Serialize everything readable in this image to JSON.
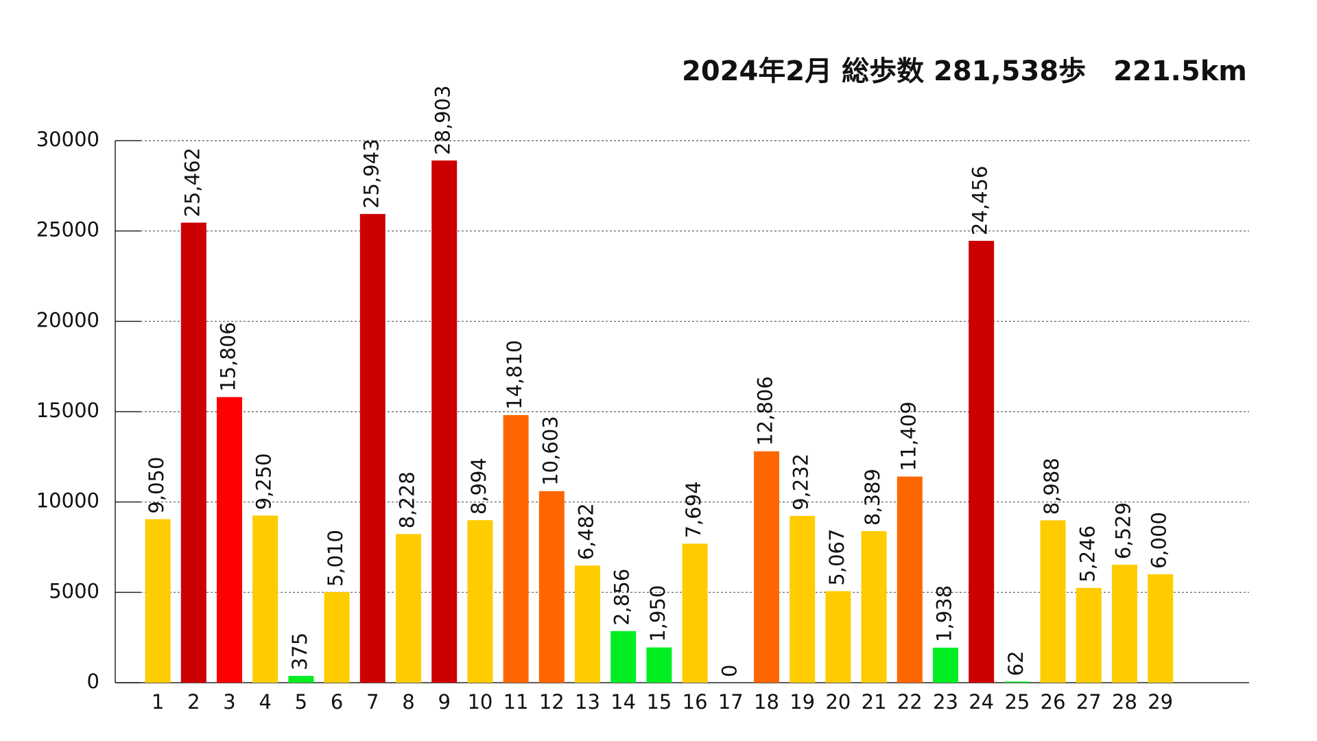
{
  "chart_data": {
    "type": "bar",
    "title": "2024年2月 総歩数 281,538歩　221.5km",
    "categories": [
      "1",
      "2",
      "3",
      "4",
      "5",
      "6",
      "7",
      "8",
      "9",
      "10",
      "11",
      "12",
      "13",
      "14",
      "15",
      "16",
      "17",
      "18",
      "19",
      "20",
      "21",
      "22",
      "23",
      "24",
      "25",
      "26",
      "27",
      "28",
      "29"
    ],
    "values": [
      9050,
      25462,
      15806,
      9250,
      375,
      5010,
      25943,
      8228,
      28903,
      8994,
      14810,
      10603,
      6482,
      2856,
      1950,
      7694,
      0,
      12806,
      9232,
      5067,
      8389,
      11409,
      1938,
      24456,
      62,
      8988,
      5246,
      6529,
      6000
    ],
    "value_labels": [
      "9,050",
      "25,462",
      "15,806",
      "9,250",
      "375",
      "5,010",
      "25,943",
      "8,228",
      "28,903",
      "8,994",
      "14,810",
      "10,603",
      "6,482",
      "2,856",
      "1,950",
      "7,694",
      "0",
      "12,806",
      "9,232",
      "5,067",
      "8,389",
      "11,409",
      "1,938",
      "24,456",
      "62",
      "8,988",
      "5,246",
      "6,529",
      "6,000"
    ],
    "colors": [
      "#ffcc00",
      "#cc0000",
      "#ff0000",
      "#ffcc00",
      "#00ee22",
      "#ffcc00",
      "#cc0000",
      "#ffcc00",
      "#cc0000",
      "#ffcc00",
      "#ff6600",
      "#ff6600",
      "#ffcc00",
      "#00ee22",
      "#00ee22",
      "#ffcc00",
      "#00ee22",
      "#ff6600",
      "#ffcc00",
      "#ffcc00",
      "#ffcc00",
      "#ff6600",
      "#00ee22",
      "#cc0000",
      "#00ee22",
      "#ffcc00",
      "#ffcc00",
      "#ffcc00",
      "#ffcc00"
    ],
    "ylim": [
      0,
      30000
    ],
    "yticks": [
      0,
      5000,
      10000,
      15000,
      20000,
      25000,
      30000
    ],
    "grid": true
  }
}
